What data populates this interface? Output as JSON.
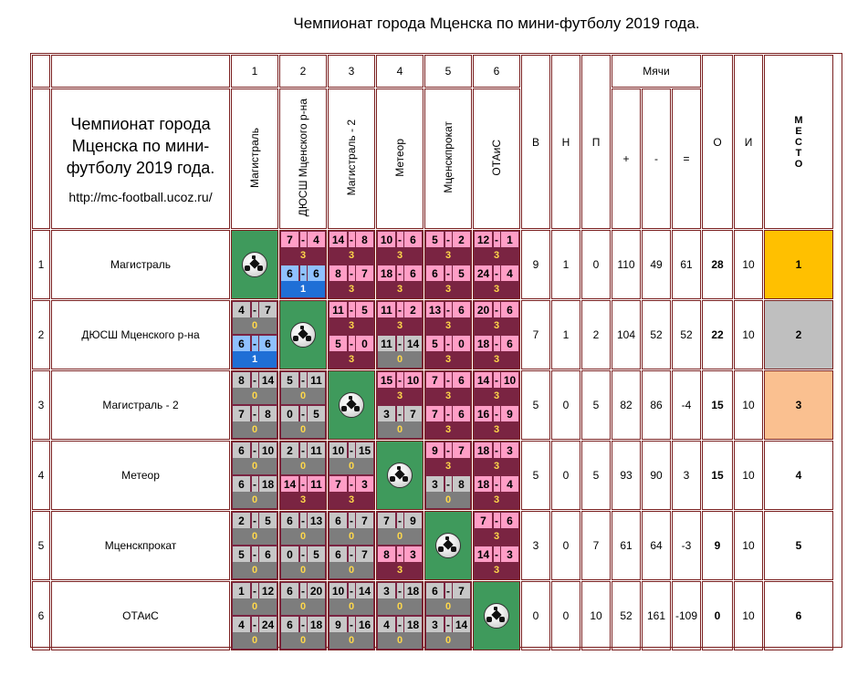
{
  "title": "Чемпионат города Мценска по мини-футболу 2019 года.",
  "header_block": {
    "title": "Чемпионат города Мценска по мини-футболу 2019 года.",
    "url": "http://mc-football.ucoz.ru/"
  },
  "columns": {
    "numbers": [
      "1",
      "2",
      "3",
      "4",
      "5",
      "6"
    ],
    "teams_vertical": [
      "Магистраль",
      "ДЮСШ Мценского р-на",
      "Магистраль - 2",
      "Метеор",
      "Мценскпрокат",
      "ОТАиС"
    ],
    "w": "В",
    "d": "Н",
    "l": "П",
    "balls": "Мячи",
    "gf": "+",
    "ga": "-",
    "diff": "=",
    "points": "О",
    "games": "И",
    "place": [
      "М",
      "Е",
      "С",
      "Т",
      "О"
    ]
  },
  "rows": [
    {
      "num": "1",
      "team": "Магистраль",
      "w": "9",
      "d": "1",
      "l": "0",
      "gf": "110",
      "ga": "49",
      "diff": "61",
      "pts": "28",
      "games": "10",
      "place": "1",
      "matches": [
        null,
        [
          {
            "a": "7",
            "b": "4",
            "p": "3",
            "r": "w"
          },
          {
            "a": "6",
            "b": "6",
            "p": "1",
            "r": "dh"
          }
        ],
        [
          {
            "a": "14",
            "b": "8",
            "p": "3",
            "r": "w"
          },
          {
            "a": "8",
            "b": "7",
            "p": "3",
            "r": "w"
          }
        ],
        [
          {
            "a": "10",
            "b": "6",
            "p": "3",
            "r": "w"
          },
          {
            "a": "18",
            "b": "6",
            "p": "3",
            "r": "w"
          }
        ],
        [
          {
            "a": "5",
            "b": "2",
            "p": "3",
            "r": "w"
          },
          {
            "a": "6",
            "b": "5",
            "p": "3",
            "r": "w"
          }
        ],
        [
          {
            "a": "12",
            "b": "1",
            "p": "3",
            "r": "w"
          },
          {
            "a": "24",
            "b": "4",
            "p": "3",
            "r": "w"
          }
        ]
      ]
    },
    {
      "num": "2",
      "team": "ДЮСШ Мценского р-на",
      "w": "7",
      "d": "1",
      "l": "2",
      "gf": "104",
      "ga": "52",
      "diff": "52",
      "pts": "22",
      "games": "10",
      "place": "2",
      "matches": [
        [
          {
            "a": "4",
            "b": "7",
            "p": "0",
            "r": "l"
          },
          {
            "a": "6",
            "b": "6",
            "p": "1",
            "r": "dh"
          }
        ],
        null,
        [
          {
            "a": "11",
            "b": "5",
            "p": "3",
            "r": "w"
          },
          {
            "a": "5",
            "b": "0",
            "p": "3",
            "r": "w"
          }
        ],
        [
          {
            "a": "11",
            "b": "2",
            "p": "3",
            "r": "w"
          },
          {
            "a": "11",
            "b": "14",
            "p": "0",
            "r": "l"
          }
        ],
        [
          {
            "a": "13",
            "b": "6",
            "p": "3",
            "r": "w"
          },
          {
            "a": "5",
            "b": "0",
            "p": "3",
            "r": "w"
          }
        ],
        [
          {
            "a": "20",
            "b": "6",
            "p": "3",
            "r": "w"
          },
          {
            "a": "18",
            "b": "6",
            "p": "3",
            "r": "w"
          }
        ]
      ]
    },
    {
      "num": "3",
      "team": "Магистраль - 2",
      "w": "5",
      "d": "0",
      "l": "5",
      "gf": "82",
      "ga": "86",
      "diff": "-4",
      "pts": "15",
      "games": "10",
      "place": "3",
      "matches": [
        [
          {
            "a": "8",
            "b": "14",
            "p": "0",
            "r": "l"
          },
          {
            "a": "7",
            "b": "8",
            "p": "0",
            "r": "l"
          }
        ],
        [
          {
            "a": "5",
            "b": "11",
            "p": "0",
            "r": "l"
          },
          {
            "a": "0",
            "b": "5",
            "p": "0",
            "r": "l"
          }
        ],
        null,
        [
          {
            "a": "15",
            "b": "10",
            "p": "3",
            "r": "w"
          },
          {
            "a": "3",
            "b": "7",
            "p": "0",
            "r": "l"
          }
        ],
        [
          {
            "a": "7",
            "b": "6",
            "p": "3",
            "r": "w"
          },
          {
            "a": "7",
            "b": "6",
            "p": "3",
            "r": "w"
          }
        ],
        [
          {
            "a": "14",
            "b": "10",
            "p": "3",
            "r": "w"
          },
          {
            "a": "16",
            "b": "9",
            "p": "3",
            "r": "w"
          }
        ]
      ]
    },
    {
      "num": "4",
      "team": "Метеор",
      "w": "5",
      "d": "0",
      "l": "5",
      "gf": "93",
      "ga": "90",
      "diff": "3",
      "pts": "15",
      "games": "10",
      "place": "4",
      "matches": [
        [
          {
            "a": "6",
            "b": "10",
            "p": "0",
            "r": "l"
          },
          {
            "a": "6",
            "b": "18",
            "p": "0",
            "r": "l"
          }
        ],
        [
          {
            "a": "2",
            "b": "11",
            "p": "0",
            "r": "l"
          },
          {
            "a": "14",
            "b": "11",
            "p": "3",
            "r": "w"
          }
        ],
        [
          {
            "a": "10",
            "b": "15",
            "p": "0",
            "r": "l"
          },
          {
            "a": "7",
            "b": "3",
            "p": "3",
            "r": "w"
          }
        ],
        null,
        [
          {
            "a": "9",
            "b": "7",
            "p": "3",
            "r": "w"
          },
          {
            "a": "3",
            "b": "8",
            "p": "0",
            "r": "l"
          }
        ],
        [
          {
            "a": "18",
            "b": "3",
            "p": "3",
            "r": "w"
          },
          {
            "a": "18",
            "b": "4",
            "p": "3",
            "r": "w"
          }
        ]
      ]
    },
    {
      "num": "5",
      "team": "Мценскпрокат",
      "w": "3",
      "d": "0",
      "l": "7",
      "gf": "61",
      "ga": "64",
      "diff": "-3",
      "pts": "9",
      "games": "10",
      "place": "5",
      "matches": [
        [
          {
            "a": "2",
            "b": "5",
            "p": "0",
            "r": "l"
          },
          {
            "a": "5",
            "b": "6",
            "p": "0",
            "r": "l"
          }
        ],
        [
          {
            "a": "6",
            "b": "13",
            "p": "0",
            "r": "l"
          },
          {
            "a": "0",
            "b": "5",
            "p": "0",
            "r": "l"
          }
        ],
        [
          {
            "a": "6",
            "b": "7",
            "p": "0",
            "r": "l"
          },
          {
            "a": "6",
            "b": "7",
            "p": "0",
            "r": "l"
          }
        ],
        [
          {
            "a": "7",
            "b": "9",
            "p": "0",
            "r": "l"
          },
          {
            "a": "8",
            "b": "3",
            "p": "3",
            "r": "w"
          }
        ],
        null,
        [
          {
            "a": "7",
            "b": "6",
            "p": "3",
            "r": "w"
          },
          {
            "a": "14",
            "b": "3",
            "p": "3",
            "r": "w"
          }
        ]
      ]
    },
    {
      "num": "6",
      "team": "ОТАиС",
      "w": "0",
      "d": "0",
      "l": "10",
      "gf": "52",
      "ga": "161",
      "diff": "-109",
      "pts": "0",
      "games": "10",
      "place": "6",
      "matches": [
        [
          {
            "a": "1",
            "b": "12",
            "p": "0",
            "r": "l"
          },
          {
            "a": "4",
            "b": "24",
            "p": "0",
            "r": "l"
          }
        ],
        [
          {
            "a": "6",
            "b": "20",
            "p": "0",
            "r": "l"
          },
          {
            "a": "6",
            "b": "18",
            "p": "0",
            "r": "l"
          }
        ],
        [
          {
            "a": "10",
            "b": "14",
            "p": "0",
            "r": "l"
          },
          {
            "a": "9",
            "b": "16",
            "p": "0",
            "r": "l"
          }
        ],
        [
          {
            "a": "3",
            "b": "18",
            "p": "0",
            "r": "l"
          },
          {
            "a": "4",
            "b": "18",
            "p": "0",
            "r": "l"
          }
        ],
        [
          {
            "a": "6",
            "b": "7",
            "p": "0",
            "r": "l"
          },
          {
            "a": "3",
            "b": "14",
            "p": "0",
            "r": "l"
          }
        ],
        null
      ]
    }
  ],
  "colors": {
    "border": "#7a1f1f",
    "win_bg": "#ff9ec6",
    "win_pts": "#7a2442",
    "loss_bg": "#c7c7c7",
    "loss_pts": "#7d7d7d",
    "draw_home_bg": "#8fc1ff",
    "draw_home_pts": "#1f6fd6",
    "self_cell": "#3f9a5c",
    "place1": "#ffc000",
    "place2": "#bfbfbf",
    "place3": "#fac090"
  },
  "icons": {
    "self_match": "soccer-ball-icon"
  }
}
